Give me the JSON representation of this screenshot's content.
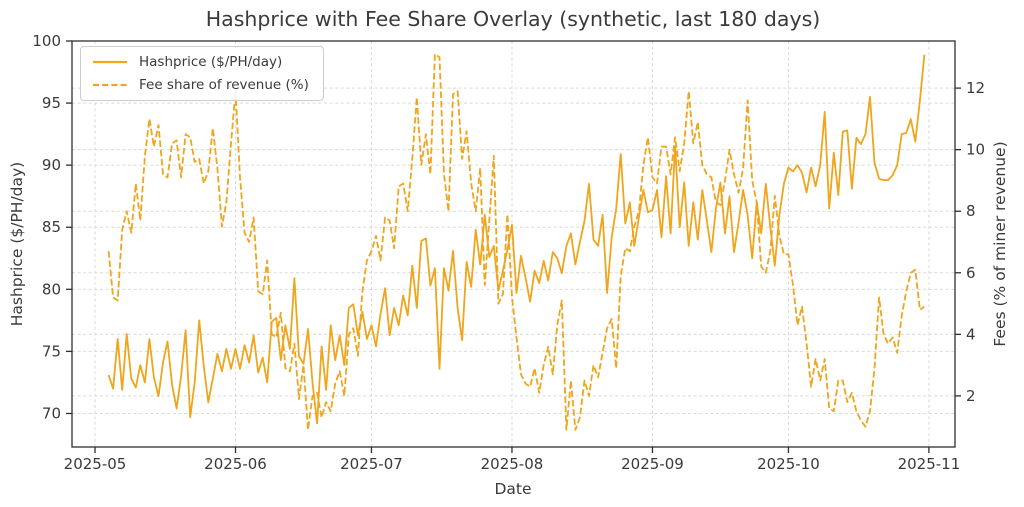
{
  "title": "Hashprice with Fee Share Overlay (synthetic, last 180 days)",
  "colors": {
    "line": "#EFA51C",
    "grid": "#d9d9d9",
    "text": "#3a3a3a",
    "spine": "#2f2f2f",
    "legend_border": "#cccccc"
  },
  "legend": {
    "items": [
      {
        "label": "Hashprice ($/PH/day)",
        "dash": false
      },
      {
        "label": "Fee share of revenue (%)",
        "dash": true
      }
    ]
  },
  "chart_data": {
    "type": "line",
    "title": "Hashprice with Fee Share Overlay (synthetic, last 180 days)",
    "xlabel": "Date",
    "ylabel_left": "Hashprice ($/PH/day)",
    "ylabel_right": "Fees (% of miner revenue)",
    "x_start_date": "2025-05-04",
    "x_unit": "days",
    "grid": true,
    "legend_position": "upper left",
    "x_tick_labels": [
      "2025-05",
      "2025-06",
      "2025-07",
      "2025-08",
      "2025-09",
      "2025-10",
      "2025-11"
    ],
    "x_tick_day_offsets": [
      -3,
      28,
      58,
      89,
      120,
      150,
      181
    ],
    "left_axis": {
      "label": "Hashprice ($/PH/day)",
      "ticks": [
        70,
        75,
        80,
        85,
        90,
        95,
        100
      ],
      "range": [
        67.3,
        100
      ]
    },
    "right_axis": {
      "label": "Fees (% of miner revenue)",
      "ticks": [
        2,
        4,
        6,
        8,
        10,
        12
      ],
      "range": [
        0.34,
        13.53
      ]
    },
    "series": [
      {
        "name": "Hashprice ($/PH/day)",
        "axis": "left",
        "style": "solid",
        "values": [
          73.1,
          72.0,
          76.0,
          71.9,
          76.4,
          72.8,
          72.1,
          73.9,
          72.5,
          76.0,
          72.9,
          71.4,
          74.1,
          75.8,
          72.3,
          70.4,
          73.0,
          76.7,
          69.7,
          72.5,
          77.5,
          73.8,
          70.9,
          72.8,
          74.8,
          73.4,
          75.2,
          73.6,
          75.2,
          73.6,
          75.5,
          74.1,
          76.3,
          73.3,
          74.5,
          72.5,
          77.4,
          77.7,
          74.3,
          77.1,
          75.2,
          80.9,
          74.6,
          74.0,
          76.8,
          72.5,
          69.2,
          75.4,
          71.9,
          77.1,
          74.3,
          76.3,
          73.9,
          78.5,
          78.8,
          76.3,
          78.2,
          76.0,
          77.1,
          75.4,
          78.0,
          80.1,
          76.3,
          78.5,
          77.1,
          79.5,
          77.9,
          81.9,
          78.5,
          83.9,
          84.1,
          80.3,
          81.7,
          73.6,
          81.7,
          79.9,
          83.1,
          78.5,
          75.9,
          82.2,
          80.2,
          84.8,
          82.0,
          86.0,
          82.6,
          83.5,
          79.9,
          81.5,
          83.2,
          85.2,
          79.7,
          82.7,
          80.9,
          79.0,
          81.5,
          80.5,
          82.3,
          80.7,
          83.0,
          82.5,
          81.3,
          83.5,
          84.5,
          82.0,
          83.8,
          85.5,
          88.5,
          84.0,
          83.5,
          86.0,
          79.7,
          84.2,
          86.5,
          90.9,
          85.3,
          87.0,
          83.5,
          85.8,
          88.0,
          86.2,
          86.4,
          88.0,
          84.2,
          89.1,
          84.5,
          91.5,
          85.0,
          88.6,
          83.5,
          87.0,
          84.0,
          88.0,
          85.5,
          83.0,
          86.5,
          88.6,
          84.5,
          87.5,
          83.0,
          85.4,
          88.0,
          86.0,
          82.5,
          87.0,
          84.5,
          88.5,
          85.0,
          81.9,
          86.0,
          88.5,
          89.8,
          89.5,
          90.0,
          89.4,
          87.8,
          89.8,
          88.3,
          90.0,
          94.3,
          86.5,
          91.0,
          87.6,
          92.7,
          92.8,
          88.1,
          92.2,
          91.7,
          92.5,
          95.5,
          90.2,
          88.9,
          88.8,
          88.8,
          89.2,
          90.0,
          92.5,
          92.6,
          93.7,
          91.9,
          95.2,
          98.9
        ]
      },
      {
        "name": "Fee share of revenue (%)",
        "axis": "right",
        "style": "dashed",
        "values": [
          6.7,
          5.2,
          5.1,
          7.4,
          8.0,
          7.3,
          8.9,
          7.7,
          9.8,
          11.0,
          10.1,
          10.8,
          9.2,
          9.1,
          10.2,
          10.3,
          9.1,
          10.5,
          10.4,
          9.6,
          9.7,
          8.9,
          9.3,
          10.7,
          9.4,
          7.5,
          8.3,
          10.2,
          11.9,
          9.1,
          7.3,
          7.0,
          7.8,
          5.4,
          5.3,
          6.4,
          4.0,
          3.9,
          4.7,
          2.9,
          2.8,
          3.7,
          1.9,
          3.0,
          0.9,
          2.0,
          2.1,
          1.3,
          1.8,
          1.5,
          2.4,
          2.8,
          2.0,
          4.0,
          4.2,
          3.3,
          5.4,
          6.4,
          6.7,
          7.2,
          6.4,
          7.8,
          7.7,
          6.8,
          8.8,
          8.9,
          8.0,
          9.7,
          11.7,
          9.5,
          10.5,
          9.2,
          13.1,
          13.0,
          9.2,
          8.0,
          11.8,
          11.9,
          9.7,
          10.6,
          8.9,
          8.0,
          9.4,
          5.6,
          7.7,
          9.8,
          5.0,
          5.3,
          7.9,
          5.2,
          3.9,
          2.7,
          2.4,
          2.3,
          2.9,
          2.1,
          3.0,
          3.6,
          2.7,
          4.3,
          5.1,
          0.9,
          2.5,
          0.9,
          1.3,
          2.5,
          2.0,
          3.0,
          2.6,
          3.4,
          4.2,
          4.5,
          2.9,
          5.9,
          6.8,
          6.7,
          7.5,
          8.0,
          9.5,
          10.4,
          9.1,
          8.9,
          10.1,
          10.1,
          9.2,
          10.4,
          9.3,
          10.2,
          11.9,
          10.2,
          10.9,
          9.5,
          9.2,
          9.1,
          8.3,
          8.2,
          9.0,
          10.0,
          9.2,
          8.6,
          9.4,
          11.6,
          9.0,
          8.3,
          6.2,
          6.0,
          6.7,
          8.5,
          7.2,
          6.6,
          6.6,
          5.6,
          4.3,
          4.9,
          3.7,
          2.3,
          3.2,
          2.5,
          3.2,
          1.6,
          1.5,
          2.5,
          2.5,
          1.8,
          2.1,
          1.5,
          1.2,
          1.0,
          1.5,
          2.9,
          5.2,
          4.0,
          3.7,
          3.9,
          3.4,
          4.6,
          5.4,
          6.0,
          6.1,
          4.8,
          4.9
        ]
      }
    ]
  }
}
